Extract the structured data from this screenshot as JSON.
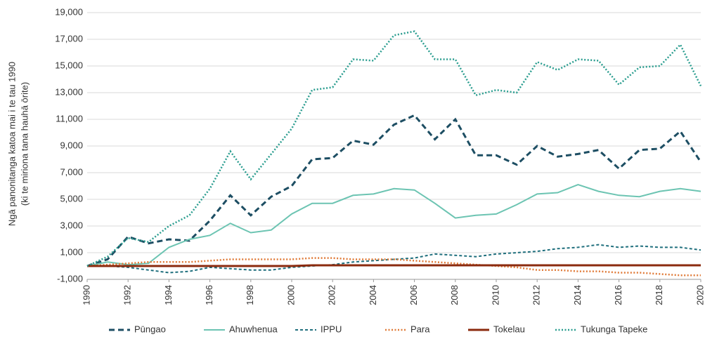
{
  "chart_data": {
    "type": "line",
    "y_label": [
      "Ngā panonitanga katoa mai i te tau 1990",
      "(ki te miriona tana hauhā ōrite)"
    ],
    "x": [
      1990,
      1991,
      1992,
      1993,
      1994,
      1995,
      1996,
      1997,
      1998,
      1999,
      2000,
      2001,
      2002,
      2003,
      2004,
      2005,
      2006,
      2007,
      2008,
      2009,
      2010,
      2011,
      2012,
      2013,
      2014,
      2015,
      2016,
      2017,
      2018,
      2019,
      2020
    ],
    "xlim": [
      1990,
      2020
    ],
    "xticks": [
      1990,
      1992,
      1994,
      1996,
      1998,
      2000,
      2002,
      2004,
      2006,
      2008,
      2010,
      2012,
      2014,
      2016,
      2018,
      2020
    ],
    "ylim": [
      -1000,
      19000
    ],
    "yticks": [
      {
        "value": -1000,
        "label": "-1,000"
      },
      {
        "value": 1000,
        "label": "1,000"
      },
      {
        "value": 3000,
        "label": "3,000"
      },
      {
        "value": 5000,
        "label": "5,000"
      },
      {
        "value": 7000,
        "label": "7,000"
      },
      {
        "value": 9000,
        "label": "9,000"
      },
      {
        "value": 11000,
        "label": "11,000"
      },
      {
        "value": 13000,
        "label": "13,000"
      },
      {
        "value": 15000,
        "label": "15,000"
      },
      {
        "value": 17000,
        "label": "17,000"
      },
      {
        "value": 19000,
        "label": "19,000"
      }
    ],
    "grid": true,
    "legend": "bottom",
    "series": [
      {
        "name": "Pūngao",
        "color": "#1d4e63",
        "style": "dashed",
        "values": [
          0,
          500,
          2200,
          1700,
          2000,
          1900,
          3400,
          5300,
          3800,
          5200,
          6000,
          8000,
          8100,
          9400,
          9100,
          10600,
          11300,
          9500,
          11000,
          8300,
          8300,
          7600,
          9000,
          8200,
          8400,
          8700,
          7300,
          8700,
          8800,
          10100,
          7800
        ]
      },
      {
        "name": "Ahuwhenua",
        "color": "#6cc4b2",
        "style": "solid",
        "values": [
          0,
          300,
          100,
          200,
          1400,
          2000,
          2300,
          3200,
          2500,
          2700,
          3900,
          4700,
          4700,
          5300,
          5400,
          5800,
          5700,
          4700,
          3600,
          3800,
          3900,
          4600,
          5400,
          5500,
          6100,
          5600,
          5300,
          5200,
          5600,
          5800,
          5600
        ]
      },
      {
        "name": "IPPU",
        "color": "#1f6f7d",
        "style": "finedash",
        "values": [
          0,
          0,
          -100,
          -300,
          -500,
          -400,
          -100,
          -200,
          -300,
          -300,
          -100,
          0,
          100,
          300,
          400,
          500,
          600,
          900,
          800,
          700,
          900,
          1000,
          1100,
          1300,
          1400,
          1600,
          1400,
          1500,
          1400,
          1400,
          1200
        ]
      },
      {
        "name": "Para",
        "color": "#e07b39",
        "style": "dotted",
        "values": [
          0,
          100,
          200,
          300,
          300,
          300,
          400,
          500,
          500,
          500,
          500,
          600,
          600,
          500,
          500,
          500,
          400,
          300,
          200,
          100,
          0,
          -100,
          -300,
          -300,
          -400,
          -400,
          -500,
          -500,
          -600,
          -700,
          -700
        ]
      },
      {
        "name": "Tokelau",
        "color": "#8b2a0e",
        "style": "solid",
        "values": [
          0,
          0,
          0,
          0,
          0,
          0,
          0,
          0,
          0,
          0,
          0,
          50,
          50,
          50,
          50,
          50,
          50,
          50,
          50,
          50,
          50,
          50,
          50,
          50,
          50,
          50,
          50,
          50,
          50,
          50,
          50
        ]
      },
      {
        "name": "Tukunga Tapeke",
        "color": "#2a9d8f",
        "style": "dotted",
        "values": [
          0,
          700,
          2100,
          1800,
          3000,
          3800,
          5800,
          8600,
          6500,
          8400,
          10300,
          13200,
          13400,
          15500,
          15400,
          17300,
          17600,
          15500,
          15500,
          12800,
          13200,
          13000,
          15300,
          14700,
          15500,
          15400,
          13600,
          14900,
          15000,
          16600,
          13500
        ]
      }
    ]
  }
}
